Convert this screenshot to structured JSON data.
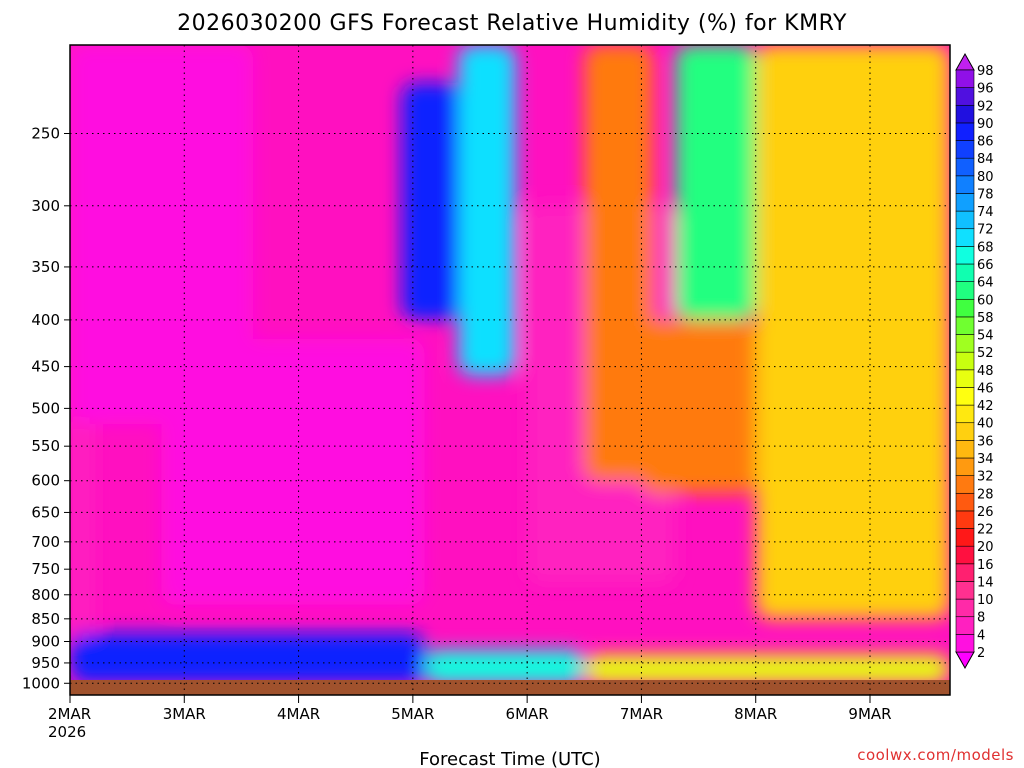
{
  "chart_data": {
    "type": "heatmap",
    "title": "2026030200 GFS Forecast Relative Humidity (%) for KMRY",
    "xlabel": "Forecast Time (UTC)",
    "ylabel": "",
    "x_categories": [
      "2MAR",
      "3MAR",
      "4MAR",
      "5MAR",
      "6MAR",
      "7MAR",
      "8MAR",
      "9MAR"
    ],
    "x_sub_label": "2026",
    "x_range_days": [
      0,
      7.7
    ],
    "y_ticks": [
      250,
      300,
      350,
      400,
      450,
      500,
      550,
      600,
      650,
      700,
      750,
      800,
      850,
      900,
      950,
      1000
    ],
    "y_range": [
      200,
      1030
    ],
    "y_scale": "log (pressure, inverted)",
    "grid": true,
    "colorbar": {
      "levels": [
        2,
        4,
        8,
        10,
        14,
        16,
        20,
        22,
        26,
        28,
        32,
        34,
        36,
        40,
        42,
        46,
        48,
        52,
        54,
        58,
        60,
        64,
        66,
        68,
        72,
        74,
        78,
        80,
        84,
        86,
        90,
        92,
        96,
        98
      ],
      "colors": [
        "#ff00ff",
        "#ff10e0",
        "#ff20c0",
        "#ff2aa8",
        "#ff3090",
        "#ff2070",
        "#ff1040",
        "#ff1818",
        "#ff3a10",
        "#ff5a10",
        "#ff7a10",
        "#ff9a10",
        "#ffb810",
        "#ffd010",
        "#ffe810",
        "#ffff10",
        "#e8ff10",
        "#c8ff10",
        "#a0ff20",
        "#70ff30",
        "#40ff40",
        "#20ff80",
        "#10ffb0",
        "#10ffe0",
        "#10e0ff",
        "#10c0ff",
        "#10a0ff",
        "#1080ff",
        "#1060ff",
        "#1040ff",
        "#1020ff",
        "#2010e0",
        "#5010e0",
        "#9010e8",
        "#c020f0"
      ],
      "placement": "right"
    },
    "rh_fields": [
      {
        "t": [
          0.0,
          0.2
        ],
        "p": [
          200,
          900
        ],
        "rh": 6
      },
      {
        "t": [
          0.0,
          1.6
        ],
        "p": [
          200,
          520
        ],
        "rh": 3
      },
      {
        "t": [
          0.8,
          3.1
        ],
        "p": [
          420,
          820
        ],
        "rh": 3
      },
      {
        "t": [
          2.9,
          3.4
        ],
        "p": [
          220,
          400
        ],
        "rh": 88
      },
      {
        "t": [
          3.4,
          3.9
        ],
        "p": [
          200,
          460
        ],
        "rh": 70
      },
      {
        "t": [
          4.0,
          5.3
        ],
        "p": [
          300,
          780
        ],
        "rh": 6
      },
      {
        "t": [
          4.5,
          5.1
        ],
        "p": [
          200,
          600
        ],
        "rh": 30
      },
      {
        "t": [
          5.3,
          6.0
        ],
        "p": [
          200,
          400
        ],
        "rh": 60
      },
      {
        "t": [
          5.0,
          6.0
        ],
        "p": [
          400,
          620
        ],
        "rh": 28
      },
      {
        "t": [
          6.0,
          7.7
        ],
        "p": [
          200,
          850
        ],
        "rh": 38
      },
      {
        "t": [
          0.0,
          3.1
        ],
        "p": [
          880,
          1000
        ],
        "rh": 88
      },
      {
        "t": [
          3.1,
          4.5
        ],
        "p": [
          920,
          1000
        ],
        "rh": 66
      },
      {
        "t": [
          4.5,
          7.7
        ],
        "p": [
          930,
          1000
        ],
        "rh": 46
      }
    ]
  },
  "footer": {
    "credit": "coolwx.com/models"
  },
  "colors": {
    "ground": "#a0522d",
    "grid": "#000000"
  }
}
